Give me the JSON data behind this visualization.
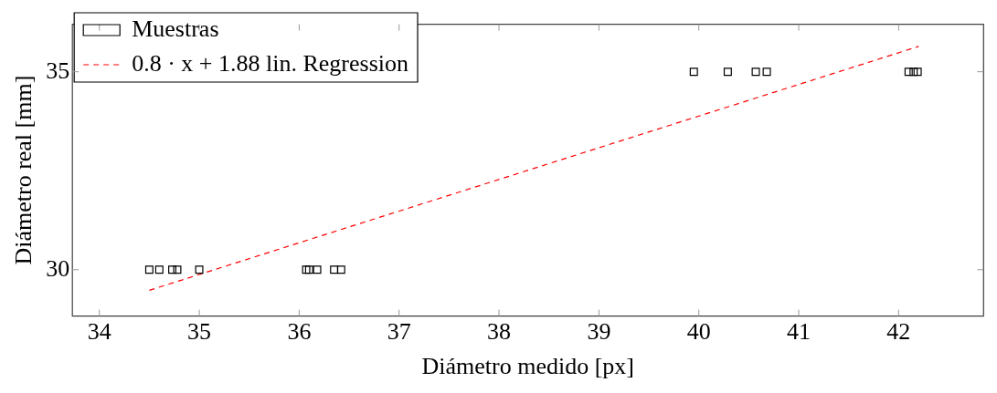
{
  "chart_data": {
    "type": "scatter",
    "xlabel": "Diámetro medido [px]",
    "ylabel": "Diámetro real [mm]",
    "xlim": [
      33.73,
      42.85
    ],
    "xticks": [
      34,
      35,
      36,
      37,
      38,
      39,
      40,
      41,
      42
    ],
    "ylim": [
      28.83,
      36.2
    ],
    "yticks": [
      30,
      35
    ],
    "grid": false,
    "legend": "top left",
    "series": [
      {
        "name": "Muestras",
        "marker": "square",
        "color": "#000000",
        "x": [
          34.5,
          34.6,
          34.73,
          34.78,
          35.0,
          36.07,
          36.1,
          36.18,
          36.35,
          36.42,
          39.95,
          40.29,
          40.57,
          40.68,
          42.1,
          42.15,
          42.19
        ],
        "values": [
          30,
          30,
          30,
          30,
          30,
          30,
          30,
          30,
          30,
          30,
          35,
          35,
          35,
          35,
          35,
          35,
          35
        ]
      },
      {
        "name": "0.8 · x + 1.88 lin. Regression",
        "type": "line",
        "marker": "none",
        "line_style": "dashed",
        "color": "#ff0000",
        "x": [
          34.5,
          42.2
        ],
        "values": [
          29.48,
          35.64
        ]
      }
    ]
  }
}
